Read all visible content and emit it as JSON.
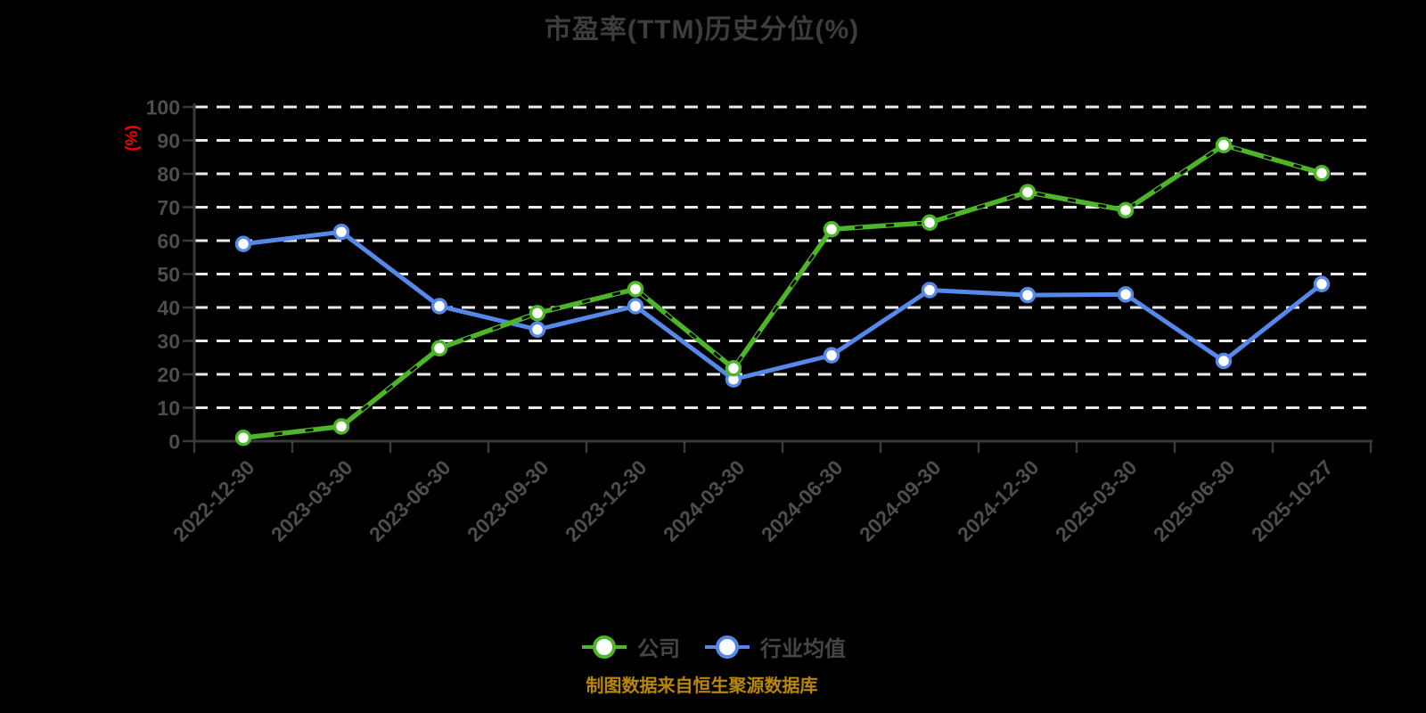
{
  "title": "市盈率(TTM)历史分位(%)",
  "y_axis_unit_label": "(%)",
  "footer_note": "制图数据来自恒生聚源数据库",
  "colors": {
    "background": "#000000",
    "title": "#3d3d3d",
    "axis_line": "#3a3a3a",
    "tick_label": "#4d4d4d",
    "gridline": "#ebebeb",
    "unit_label": "#ec0000",
    "footer": "#b8860b",
    "legend_label": "#454545",
    "company_green": "#4cb628",
    "industry_blue": "#5588e8",
    "marker_fill": "#ffffff",
    "dash_overlay": "#000000"
  },
  "chart_data": {
    "type": "line",
    "title": "市盈率(TTM)历史分位(%)",
    "ylabel": "(%)",
    "ylim": [
      0,
      100
    ],
    "y_ticks": [
      0,
      10,
      20,
      30,
      40,
      50,
      60,
      70,
      80,
      90,
      100
    ],
    "grid": "horizontal white dashed lines",
    "legend_position": "bottom",
    "categories": [
      "2022-12-30",
      "2023-03-30",
      "2023-06-30",
      "2023-09-30",
      "2023-12-30",
      "2024-03-30",
      "2024-06-30",
      "2024-09-30",
      "2024-12-30",
      "2025-03-30",
      "2025-06-30",
      "2025-10-27"
    ],
    "series": [
      {
        "name": "公司",
        "color": "#4cb628",
        "line_style": "solid green with black dashed overlay",
        "marker": "circle, white fill, green ring",
        "values": [
          1.0,
          4.4,
          27.8,
          38.3,
          45.5,
          21.8,
          63.4,
          65.4,
          74.5,
          69.1,
          88.6,
          80.2
        ]
      },
      {
        "name": "行业均值",
        "color": "#5588e8",
        "line_style": "solid",
        "marker": "circle, white fill, blue ring",
        "values": [
          59.0,
          62.6,
          40.4,
          33.4,
          40.4,
          18.5,
          25.7,
          45.2,
          43.7,
          43.9,
          24.0,
          47.0
        ]
      }
    ]
  }
}
